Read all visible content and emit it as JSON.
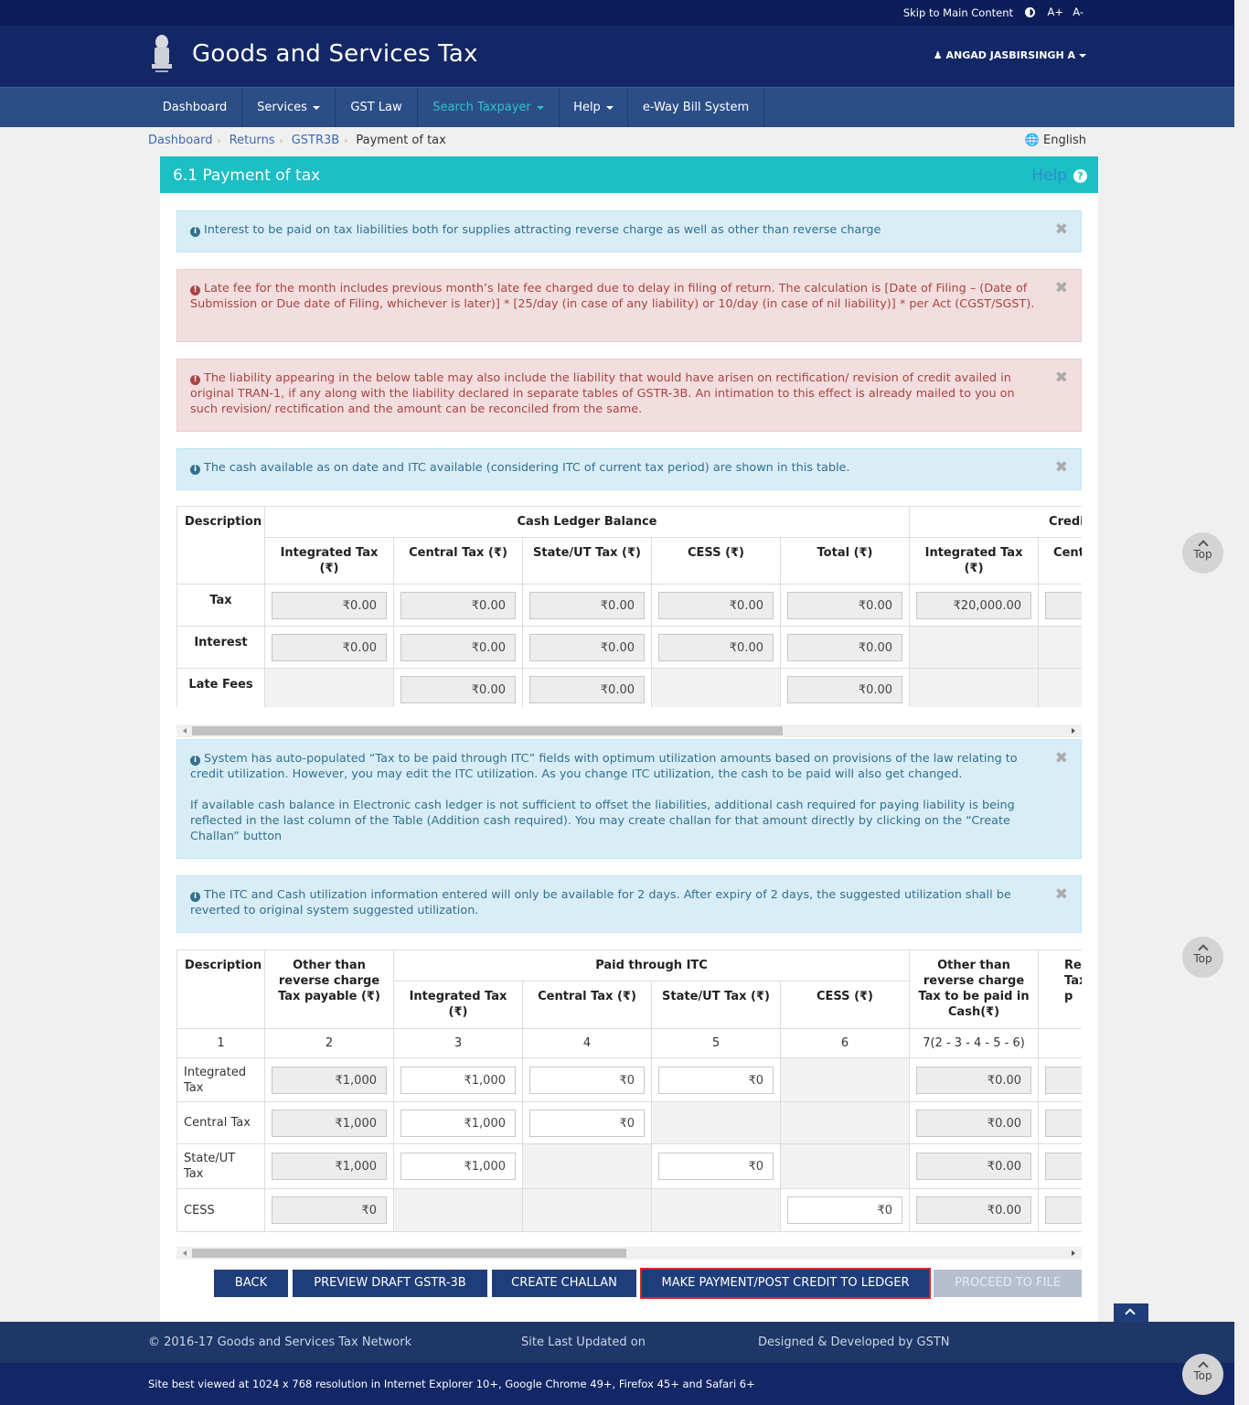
{
  "topbar": {
    "skip": "Skip to Main Content",
    "font_increase": "A+",
    "font_decrease": "A-"
  },
  "header": {
    "title": "Goods and Services Tax",
    "user": "ANGAD JASBIRSINGH A"
  },
  "nav": [
    "Dashboard",
    "Services",
    "GST Law",
    "Search Taxpayer",
    "Help",
    "e-Way Bill System"
  ],
  "breadcrumb": {
    "items": [
      "Dashboard",
      "Returns",
      "GSTR3B"
    ],
    "current": "Payment of tax"
  },
  "language": "English",
  "panel": {
    "title": "6.1 Payment of tax",
    "help": "Help"
  },
  "alerts": [
    "Interest to be paid on tax liabilities both for supplies attracting reverse charge as well as other than reverse charge",
    "Late fee for the month includes previous month’s late fee charged due to delay in filing of return. The calculation is [Date of Filing – (Date of Submission or Due date of Filing, whichever is later)] * [25/day (in case of any liability) or 10/day (in case of nil liability)] * per Act (CGST/SGST).",
    "The liability appearing in the below table may also include the liability that would have arisen on rectification/ revision of credit availed in original TRAN-1, if any along with the liability declared in separate tables of GSTR-3B. An intimation to this effect is already mailed to you on such revision/ rectification and the amount can be reconciled from the same.",
    "The cash available as on date and ITC available (considering ITC of current tax period) are shown in this table.",
    "System has auto-populated “Tax to be paid through ITC” fields with optimum utilization amounts based on provisions of the law relating to credit utilization. However, you may edit the ITC utilization. As you change ITC utilization, the cash to be paid will also get changed.",
    "If available cash balance in Electronic cash ledger is not sufficient to offset the liabilities, additional cash required for paying liability is being reflected in the last column of the Table (Addition cash required). You may create challan for that amount directly by clicking on the “Create Challan” button",
    "The ITC and Cash utilization information entered will only be available for 2 days. After expiry of 2 days, the suggested utilization shall be reverted to original system suggested utilization."
  ],
  "balance_table": {
    "h_desc": "Description",
    "h_cash": "Cash Ledger Balance",
    "h_credit": "Credi",
    "cols": [
      "Integrated Tax (₹)",
      "Central Tax (₹)",
      "State/UT Tax (₹)",
      "CESS (₹)",
      "Total (₹)",
      "Integrated Tax (₹)",
      "Cent"
    ],
    "rows": [
      {
        "label": "Tax",
        "cells": [
          "₹0.00",
          "₹0.00",
          "₹0.00",
          "₹0.00",
          "₹0.00",
          "₹20,000.00"
        ]
      },
      {
        "label": "Interest",
        "cells": [
          "₹0.00",
          "₹0.00",
          "₹0.00",
          "₹0.00",
          "₹0.00"
        ]
      },
      {
        "label": "Late Fees",
        "cells": [
          "₹0.00",
          "₹0.00",
          "₹0.00"
        ]
      }
    ]
  },
  "payment_table": {
    "h_desc": "Description",
    "h_other": "Other than reverse charge Tax payable (₹)",
    "h_itc": "Paid through ITC",
    "h_cash": "Other than reverse charge Tax to be paid in Cash(₹)",
    "h_rev": "Reve Tax p",
    "itc_cols": [
      "Integrated Tax (₹)",
      "Central Tax (₹)",
      "State/UT Tax (₹)",
      "CESS (₹)"
    ],
    "nums": [
      "1",
      "2",
      "3",
      "4",
      "5",
      "6",
      "7(2 - 3 - 4 - 5 - 6)"
    ],
    "rows": [
      {
        "label": "Integrated Tax",
        "payable": "₹1,000",
        "igst": "₹1,000",
        "cgst": "₹0",
        "sgst": "₹0",
        "cash": "₹0.00"
      },
      {
        "label": "Central Tax",
        "payable": "₹1,000",
        "igst": "₹1,000",
        "cgst": "₹0",
        "cash": "₹0.00"
      },
      {
        "label": "State/UT Tax",
        "payable": "₹1,000",
        "igst": "₹1,000",
        "sgst": "₹0",
        "cash": "₹0.00"
      },
      {
        "label": "CESS",
        "payable": "₹0",
        "cess": "₹0",
        "cash": "₹0.00"
      }
    ]
  },
  "buttons": [
    "BACK",
    "PREVIEW DRAFT GSTR-3B",
    "CREATE CHALLAN",
    "MAKE PAYMENT/POST CREDIT TO LEDGER",
    "PROCEED TO FILE"
  ],
  "top_label": "Top",
  "footer": {
    "copyright": "© 2016-17 Goods and Services Tax Network",
    "updated": "Site Last Updated on",
    "designed": "Designed & Developed by GSTN",
    "best_viewed": "Site best viewed at 1024 x 768 resolution in Internet Explorer 10+, Google Chrome 49+, Firefox 45+ and Safari 6+"
  }
}
